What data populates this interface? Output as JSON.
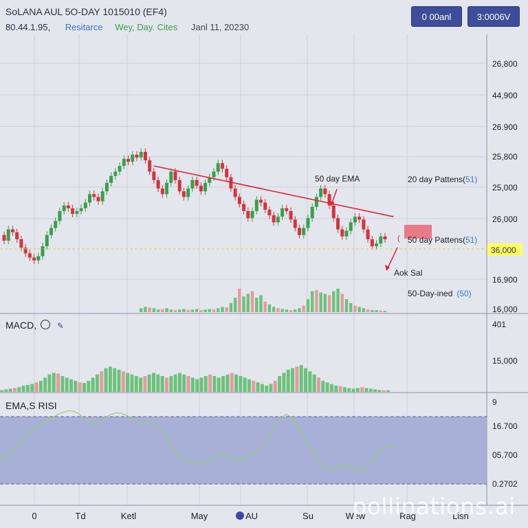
{
  "header": {
    "title": "SoLANA AUL 5O-DAY 1015010 (EF4)",
    "price": "80.44.1.95,",
    "resistance": "Resitarce",
    "wey_day": "Wey, Day. Cites",
    "date": "Janl 11, 20230",
    "button_1": "0 00anl",
    "button_2": "3:0006V"
  },
  "annotations": {
    "ema50": "50 day EMA",
    "patterns20": "20 day Pattens(",
    "patterns20_num": "51)",
    "patterns50": "50 day Pattens(",
    "patterns50_num": "51)",
    "aok": "Aok Sal",
    "day_ined": "50-Day-ined",
    "day_ined_num": "(50)"
  },
  "indicators": {
    "macd_title": "MACD, ",
    "macd_icon": "gear-icon",
    "rsi_title": "EMA,S RISI"
  },
  "y_axis_main": [
    "26,800",
    "44,900",
    "26.900",
    "25,800",
    "25,000",
    "26,000",
    "36,000",
    "16,900",
    "16,000"
  ],
  "y_axis_macd": [
    "401",
    "15,000"
  ],
  "y_axis_rsi": [
    "9",
    "16.700",
    "05.700",
    "0.2702"
  ],
  "x_axis": [
    "0",
    "Td",
    "Ketl",
    "May",
    "AU",
    "Su",
    "Wew",
    "Rag",
    "Lisn"
  ],
  "watermark": "pollinations.ai",
  "colors": {
    "up": "#3a9e4a",
    "down": "#d6343c",
    "trend": "#e0253a",
    "rsi_band": "#a9b0d8",
    "highlight": "#ffff66",
    "dashed": "#e3cf4a",
    "accent_blue": "#3a78c8"
  },
  "chart_data": {
    "type": "candlestick",
    "title": "SoLANA AUL 5O-DAY 1015010 (EF4)",
    "highlight_level": "36,000",
    "candles": [
      {
        "o": 0.43,
        "c": 0.39
      },
      {
        "o": 0.39,
        "c": 0.47
      },
      {
        "o": 0.47,
        "c": 0.45
      },
      {
        "o": 0.45,
        "c": 0.4
      },
      {
        "o": 0.4,
        "c": 0.34
      },
      {
        "o": 0.34,
        "c": 0.3
      },
      {
        "o": 0.3,
        "c": 0.27
      },
      {
        "o": 0.27,
        "c": 0.25
      },
      {
        "o": 0.25,
        "c": 0.28
      },
      {
        "o": 0.28,
        "c": 0.35
      },
      {
        "o": 0.35,
        "c": 0.43
      },
      {
        "o": 0.43,
        "c": 0.48
      },
      {
        "o": 0.48,
        "c": 0.53
      },
      {
        "o": 0.53,
        "c": 0.6
      },
      {
        "o": 0.6,
        "c": 0.64
      },
      {
        "o": 0.64,
        "c": 0.62
      },
      {
        "o": 0.62,
        "c": 0.58
      },
      {
        "o": 0.58,
        "c": 0.6
      },
      {
        "o": 0.6,
        "c": 0.62
      },
      {
        "o": 0.62,
        "c": 0.66
      },
      {
        "o": 0.66,
        "c": 0.72
      },
      {
        "o": 0.72,
        "c": 0.7
      },
      {
        "o": 0.7,
        "c": 0.67
      },
      {
        "o": 0.67,
        "c": 0.74
      },
      {
        "o": 0.74,
        "c": 0.8
      },
      {
        "o": 0.8,
        "c": 0.85
      },
      {
        "o": 0.85,
        "c": 0.88
      },
      {
        "o": 0.88,
        "c": 0.92
      },
      {
        "o": 0.92,
        "c": 0.97
      },
      {
        "o": 0.97,
        "c": 0.95
      },
      {
        "o": 0.95,
        "c": 1.0
      },
      {
        "o": 1.0,
        "c": 0.98
      },
      {
        "o": 0.98,
        "c": 1.02
      },
      {
        "o": 1.02,
        "c": 0.96
      },
      {
        "o": 0.96,
        "c": 0.88
      },
      {
        "o": 0.88,
        "c": 0.82
      },
      {
        "o": 0.82,
        "c": 0.76
      },
      {
        "o": 0.76,
        "c": 0.72
      },
      {
        "o": 0.72,
        "c": 0.8
      },
      {
        "o": 0.8,
        "c": 0.88
      },
      {
        "o": 0.88,
        "c": 0.82
      },
      {
        "o": 0.82,
        "c": 0.74
      },
      {
        "o": 0.74,
        "c": 0.7
      },
      {
        "o": 0.7,
        "c": 0.76
      },
      {
        "o": 0.76,
        "c": 0.82
      },
      {
        "o": 0.82,
        "c": 0.78
      },
      {
        "o": 0.78,
        "c": 0.74
      },
      {
        "o": 0.74,
        "c": 0.8
      },
      {
        "o": 0.8,
        "c": 0.84
      },
      {
        "o": 0.84,
        "c": 0.88
      },
      {
        "o": 0.88,
        "c": 0.94
      },
      {
        "o": 0.94,
        "c": 0.9
      },
      {
        "o": 0.9,
        "c": 0.84
      },
      {
        "o": 0.84,
        "c": 0.76
      },
      {
        "o": 0.76,
        "c": 0.7
      },
      {
        "o": 0.7,
        "c": 0.65
      },
      {
        "o": 0.65,
        "c": 0.6
      },
      {
        "o": 0.6,
        "c": 0.55
      },
      {
        "o": 0.55,
        "c": 0.6
      },
      {
        "o": 0.6,
        "c": 0.68
      },
      {
        "o": 0.68,
        "c": 0.66
      },
      {
        "o": 0.66,
        "c": 0.61
      },
      {
        "o": 0.61,
        "c": 0.57
      },
      {
        "o": 0.57,
        "c": 0.52
      },
      {
        "o": 0.52,
        "c": 0.56
      },
      {
        "o": 0.56,
        "c": 0.62
      },
      {
        "o": 0.62,
        "c": 0.6
      },
      {
        "o": 0.6,
        "c": 0.54
      },
      {
        "o": 0.54,
        "c": 0.48
      },
      {
        "o": 0.48,
        "c": 0.43
      },
      {
        "o": 0.43,
        "c": 0.48
      },
      {
        "o": 0.48,
        "c": 0.55
      },
      {
        "o": 0.55,
        "c": 0.63
      },
      {
        "o": 0.63,
        "c": 0.7
      },
      {
        "o": 0.7,
        "c": 0.76
      },
      {
        "o": 0.76,
        "c": 0.72
      },
      {
        "o": 0.72,
        "c": 0.64
      },
      {
        "o": 0.64,
        "c": 0.55
      },
      {
        "o": 0.55,
        "c": 0.47
      },
      {
        "o": 0.47,
        "c": 0.42
      },
      {
        "o": 0.42,
        "c": 0.46
      },
      {
        "o": 0.46,
        "c": 0.52
      },
      {
        "o": 0.52,
        "c": 0.56
      },
      {
        "o": 0.56,
        "c": 0.54
      },
      {
        "o": 0.54,
        "c": 0.47
      },
      {
        "o": 0.47,
        "c": 0.4
      },
      {
        "o": 0.4,
        "c": 0.35
      },
      {
        "o": 0.35,
        "c": 0.37
      },
      {
        "o": 0.37,
        "c": 0.42
      },
      {
        "o": 0.42,
        "c": 0.4
      }
    ],
    "trendline": {
      "from_index": 35,
      "from_value": 0.92,
      "to_index": 91,
      "to_value": 0.56
    },
    "volume": [
      0,
      0,
      0,
      0,
      0,
      0,
      0,
      0,
      0,
      0,
      0,
      0,
      0,
      0,
      0,
      0,
      0,
      0,
      0,
      0,
      0,
      0,
      0,
      0,
      0,
      0,
      0,
      0,
      0,
      0,
      0,
      0,
      0.15,
      0.2,
      0.18,
      0.15,
      0.1,
      0.12,
      0.15,
      0.1,
      0.08,
      0.1,
      0.12,
      0.08,
      0.1,
      0.12,
      0.08,
      0.1,
      0.12,
      0.1,
      0.15,
      0.2,
      0.18,
      0.35,
      0.55,
      0.9,
      0.6,
      0.7,
      0.8,
      0.55,
      0.65,
      0.4,
      0.3,
      0.2,
      0.15,
      0.12,
      0.1,
      0.08,
      0.1,
      0.15,
      0.25,
      0.5,
      0.8,
      0.85,
      0.75,
      0.7,
      0.65,
      0.8,
      0.9,
      0.7,
      0.5,
      0.35,
      0.25,
      0.2,
      0.15,
      0.1,
      0.08,
      0.08,
      0.06,
      0.05
    ],
    "macd": [
      0.05,
      0.08,
      0.1,
      0.12,
      0.15,
      0.2,
      0.22,
      0.25,
      0.3,
      0.35,
      0.45,
      0.55,
      0.6,
      0.58,
      0.5,
      0.45,
      0.4,
      0.35,
      0.3,
      0.28,
      0.35,
      0.45,
      0.55,
      0.65,
      0.75,
      0.8,
      0.75,
      0.7,
      0.65,
      0.6,
      0.55,
      0.5,
      0.45,
      0.5,
      0.55,
      0.6,
      0.55,
      0.5,
      0.45,
      0.5,
      0.55,
      0.6,
      0.55,
      0.5,
      0.45,
      0.4,
      0.45,
      0.5,
      0.55,
      0.5,
      0.45,
      0.5,
      0.55,
      0.6,
      0.55,
      0.5,
      0.45,
      0.4,
      0.35,
      0.3,
      0.25,
      0.2,
      0.25,
      0.35,
      0.5,
      0.6,
      0.7,
      0.75,
      0.8,
      0.85,
      0.75,
      0.65,
      0.55,
      0.45,
      0.35,
      0.3,
      0.25,
      0.2,
      0.18,
      0.15,
      0.12,
      0.1,
      0.12,
      0.15,
      0.12,
      0.1,
      0.08,
      0.06,
      0.05,
      0.05
    ],
    "rsi": [
      0.28,
      0.32,
      0.38,
      0.44,
      0.52,
      0.6,
      0.68,
      0.74,
      0.78,
      0.82,
      0.86,
      0.9,
      0.93,
      0.95,
      0.94,
      0.9,
      0.84,
      0.78,
      0.76,
      0.8,
      0.86,
      0.9,
      0.92,
      0.91,
      0.88,
      0.84,
      0.8,
      0.78,
      0.8,
      0.78,
      0.72,
      0.62,
      0.5,
      0.4,
      0.32,
      0.28,
      0.24,
      0.22,
      0.22,
      0.25,
      0.3,
      0.34,
      0.36,
      0.33,
      0.3,
      0.28,
      0.3,
      0.33,
      0.37,
      0.42,
      0.5,
      0.62,
      0.75,
      0.85,
      0.9,
      0.86,
      0.78,
      0.66,
      0.52,
      0.38,
      0.26,
      0.18,
      0.14,
      0.14,
      0.18,
      0.2,
      0.18,
      0.14,
      0.13,
      0.16,
      0.24,
      0.34,
      0.42,
      0.46,
      0.47,
      0.46
    ]
  }
}
